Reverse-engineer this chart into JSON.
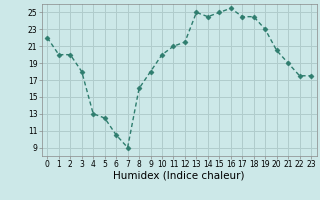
{
  "x": [
    0,
    1,
    2,
    3,
    4,
    5,
    6,
    7,
    8,
    9,
    10,
    11,
    12,
    13,
    14,
    15,
    16,
    17,
    18,
    19,
    20,
    21,
    22,
    23
  ],
  "y": [
    22,
    20,
    20,
    18,
    13,
    12.5,
    10.5,
    9,
    16,
    18,
    20,
    21,
    21.5,
    25,
    24.5,
    25,
    25.5,
    24.5,
    24.5,
    23,
    20.5,
    19,
    17.5,
    17.5
  ],
  "line_color": "#2e7d6e",
  "marker": "D",
  "marker_size": 2.5,
  "bg_color": "#cce8e8",
  "grid_color": "#b0cccc",
  "xlabel": "Humidex (Indice chaleur)",
  "xlim": [
    -0.5,
    23.5
  ],
  "ylim": [
    8,
    26
  ],
  "yticks": [
    9,
    11,
    13,
    15,
    17,
    19,
    21,
    23,
    25
  ],
  "xticks": [
    0,
    1,
    2,
    3,
    4,
    5,
    6,
    7,
    8,
    9,
    10,
    11,
    12,
    13,
    14,
    15,
    16,
    17,
    18,
    19,
    20,
    21,
    22,
    23
  ],
  "tick_fontsize": 5.5,
  "xlabel_fontsize": 7.5,
  "linewidth": 1.0
}
